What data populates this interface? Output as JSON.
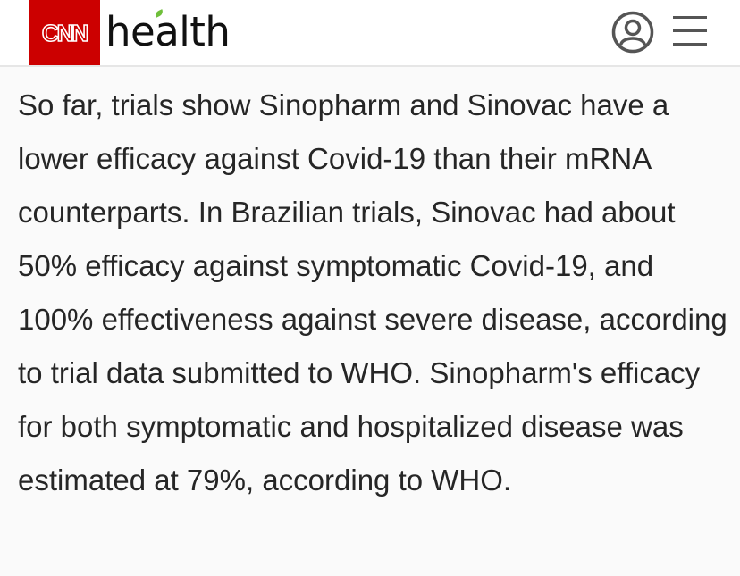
{
  "header": {
    "logo_text": "CNN",
    "section_title": "health",
    "brand_color": "#cc0000",
    "leaf_color": "#6fbf3a",
    "icons": [
      "account-icon",
      "menu-icon"
    ]
  },
  "article": {
    "paragraph": "So far, trials show Sinopharm and Sinovac have a lower efficacy against Covid-19 than their mRNA counterparts. In Brazilian trials, Sinovac had about 50% efficacy against symptomatic Covid-19, and 100% effectiveness against severe disease, according to trial data submitted to WHO. Sinopharm's efficacy for both symptomatic and hospitalized disease was estimated at 79%, according to WHO."
  }
}
